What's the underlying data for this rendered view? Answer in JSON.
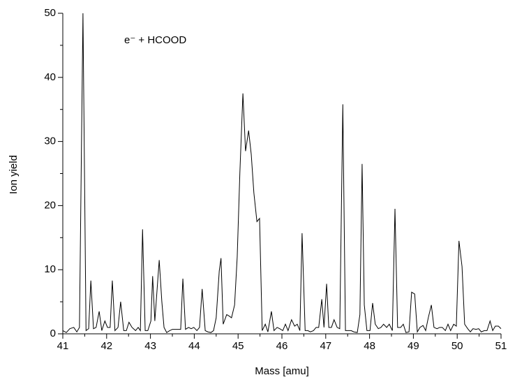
{
  "chart_data": {
    "type": "line",
    "annotation": "e⁻ + HCOOD",
    "xlabel": "Mass [amu]",
    "ylabel": "Ion yield",
    "color": "#000000",
    "xlim": [
      41,
      51
    ],
    "xticks": [
      41,
      42,
      43,
      44,
      45,
      46,
      47,
      48,
      49,
      50,
      51
    ],
    "xminorticks": [
      41.5,
      42.5,
      43.5,
      44.5,
      45.5,
      46.5,
      47.5,
      48.5,
      49.5,
      50.5
    ],
    "ylim": [
      0,
      50
    ],
    "yticks": [
      0,
      10,
      20,
      30,
      40,
      50
    ],
    "yminorticks": [
      5,
      15,
      25,
      35,
      45
    ],
    "x": [
      41.0,
      41.08,
      41.16,
      41.25,
      41.32,
      41.38,
      41.46,
      41.53,
      41.59,
      41.64,
      41.7,
      41.76,
      41.83,
      41.89,
      41.96,
      42.02,
      42.08,
      42.13,
      42.19,
      42.26,
      42.32,
      42.39,
      42.45,
      42.51,
      42.58,
      42.66,
      42.72,
      42.77,
      42.82,
      42.88,
      42.94,
      43.01,
      43.05,
      43.1,
      43.2,
      43.26,
      43.31,
      43.37,
      43.44,
      43.5,
      43.56,
      43.63,
      43.69,
      43.74,
      43.8,
      43.87,
      43.93,
      43.99,
      44.06,
      44.12,
      44.18,
      44.25,
      44.31,
      44.38,
      44.44,
      44.5,
      44.57,
      44.61,
      44.66,
      44.74,
      44.79,
      44.85,
      44.92,
      44.98,
      45.04,
      45.11,
      45.17,
      45.24,
      45.3,
      45.36,
      45.43,
      45.49,
      45.55,
      45.62,
      45.68,
      45.76,
      45.82,
      45.89,
      45.95,
      46.02,
      46.08,
      46.14,
      46.22,
      46.29,
      46.35,
      46.41,
      46.46,
      46.53,
      46.59,
      46.65,
      46.72,
      46.78,
      46.84,
      46.91,
      46.96,
      47.02,
      47.07,
      47.13,
      47.19,
      47.26,
      47.32,
      47.39,
      47.45,
      47.51,
      47.58,
      47.64,
      47.72,
      47.78,
      47.83,
      47.88,
      47.94,
      48.01,
      48.07,
      48.13,
      48.2,
      48.26,
      48.32,
      48.39,
      48.45,
      48.52,
      48.58,
      48.64,
      48.71,
      48.77,
      48.83,
      48.9,
      48.96,
      49.03,
      49.09,
      49.15,
      49.22,
      49.28,
      49.34,
      49.41,
      49.47,
      49.54,
      49.6,
      49.66,
      49.73,
      49.79,
      49.85,
      49.92,
      49.98,
      50.04,
      50.11,
      50.17,
      50.24,
      50.3,
      50.36,
      50.43,
      50.49,
      50.55,
      50.62,
      50.68,
      50.75,
      50.81,
      50.87,
      50.94,
      51.0
    ],
    "values": [
      0.5,
      0.2,
      0.8,
      1.0,
      0.3,
      1,
      50,
      0.5,
      0.8,
      8.3,
      0.8,
      1,
      3.5,
      0.5,
      2,
      1,
      1,
      8.3,
      0.5,
      1,
      5,
      0.5,
      0.5,
      1.8,
      1,
      0.5,
      1,
      0.5,
      16.3,
      0.5,
      0.5,
      2,
      9,
      2,
      11.5,
      5,
      1,
      0.2,
      0.5,
      0.7,
      0.7,
      0.7,
      0.7,
      8.6,
      0.7,
      1,
      0.8,
      1,
      0.5,
      1,
      7,
      0.5,
      0.3,
      0.2,
      0.5,
      2.5,
      9.8,
      11.8,
      1.5,
      3,
      2.8,
      2.5,
      4.5,
      12,
      25,
      37.5,
      28.5,
      31.7,
      28,
      22,
      17.5,
      18,
      0.5,
      1.5,
      0.3,
      3.5,
      0.5,
      1,
      0.8,
      0.5,
      1.5,
      0.5,
      2.2,
      1.2,
      1.5,
      0.5,
      15.7,
      0.5,
      0.5,
      0.3,
      0.5,
      1,
      1,
      5.4,
      1,
      7.8,
      1,
      1,
      2.2,
      1,
      0.8,
      35.8,
      0.5,
      0.5,
      0.5,
      0.3,
      0.2,
      3,
      26.5,
      4.5,
      0.5,
      0.5,
      4.8,
      1.5,
      0.8,
      1,
      1.5,
      1,
      1.5,
      0.5,
      19.5,
      1,
      1,
      1.5,
      0.2,
      0.3,
      6.5,
      6.2,
      0.3,
      1,
      1.3,
      0.5,
      2.5,
      4.5,
      1,
      0.8,
      1,
      1,
      0.5,
      1.5,
      0.5,
      1.5,
      1.2,
      14.5,
      10.5,
      1.5,
      0.8,
      0.3,
      0.8,
      0.7,
      0.8,
      0.3,
      0.5,
      0.5,
      2,
      0.5,
      1.2,
      1.2,
      0.8
    ]
  }
}
